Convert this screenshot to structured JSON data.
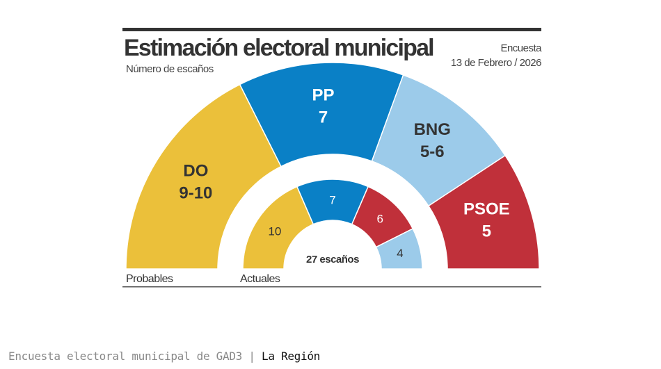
{
  "chart_data": {
    "type": "pie",
    "subtype": "semicircle-parliament",
    "title": "Estimación electoral municipal",
    "subtitle": "Número de escaños",
    "note_line1": "Encuesta",
    "note_line2": "13 de Febrero / 2026",
    "total_label": "27 escaños",
    "total_seats": 27,
    "rings": [
      {
        "name": "Probables",
        "segments": [
          {
            "party": "DO",
            "label": "9-10",
            "value": 9.5,
            "color": "#ebc03a"
          },
          {
            "party": "PP",
            "label": "7",
            "value": 7,
            "color": "#0a80c6"
          },
          {
            "party": "BNG",
            "label": "5-6",
            "value": 5.5,
            "color": "#9ccbea"
          },
          {
            "party": "PSOE",
            "label": "5",
            "value": 5,
            "color": "#c0303a"
          }
        ]
      },
      {
        "name": "Actuales",
        "segments": [
          {
            "party": "DO",
            "label": "10",
            "value": 10,
            "color": "#ebc03a"
          },
          {
            "party": "PP",
            "label": "7",
            "value": 7,
            "color": "#0a80c6"
          },
          {
            "party": "PSOE",
            "label": "6",
            "value": 6,
            "color": "#c0303a"
          },
          {
            "party": "BNG",
            "label": "4",
            "value": 4,
            "color": "#9ccbea"
          }
        ]
      }
    ]
  },
  "caption": {
    "text": "Encuesta electoral municipal de GAD3 |",
    "source": "La Región"
  }
}
